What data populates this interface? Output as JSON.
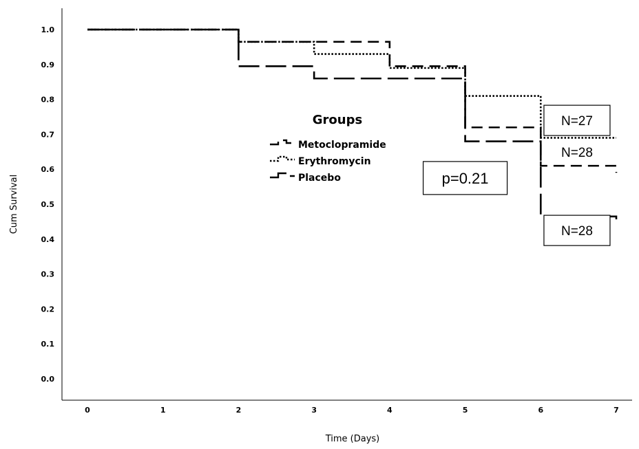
{
  "chart_data": {
    "type": "line",
    "step": true,
    "xlabel": "Time (Days)",
    "ylabel": "Cum Survival",
    "xlim": [
      0,
      7
    ],
    "ylim": [
      0,
      1.0
    ],
    "x_ticks": [
      "0",
      "1",
      "2",
      "3",
      "4",
      "5",
      "6",
      "7"
    ],
    "y_ticks": [
      "0.0",
      "0.1",
      "0.2",
      "0.3",
      "0.4",
      "0.5",
      "0.6",
      "0.7",
      "0.8",
      "0.9",
      "1.0"
    ],
    "grid": false,
    "legend": {
      "title": "Groups",
      "position": "center"
    },
    "series": [
      {
        "name": "Metoclopramide",
        "style": "dashed-medium",
        "points": [
          [
            0,
            1.0
          ],
          [
            2,
            0.965
          ],
          [
            4,
            0.895
          ],
          [
            5,
            0.72
          ],
          [
            6,
            0.61
          ],
          [
            7,
            0.59
          ]
        ]
      },
      {
        "name": "Erythromycin",
        "style": "dotted",
        "points": [
          [
            0,
            1.0
          ],
          [
            2,
            0.965
          ],
          [
            3,
            0.93
          ],
          [
            4,
            0.89
          ],
          [
            5,
            0.81
          ],
          [
            6,
            0.69
          ],
          [
            7,
            0.69
          ]
        ]
      },
      {
        "name": "Placebo",
        "style": "dashed-long",
        "points": [
          [
            0,
            1.0
          ],
          [
            2,
            0.895
          ],
          [
            3,
            0.86
          ],
          [
            5,
            0.68
          ],
          [
            6,
            0.465
          ],
          [
            7,
            0.44
          ]
        ]
      }
    ],
    "annotations": [
      {
        "text": "p=0.21",
        "x": 5.0,
        "y": 0.575
      },
      {
        "text": "N=27",
        "x": 6.48,
        "y": 0.74
      },
      {
        "text": "N=28",
        "x": 6.48,
        "y": 0.65
      },
      {
        "text": "N=28",
        "x": 6.48,
        "y": 0.425
      }
    ]
  }
}
